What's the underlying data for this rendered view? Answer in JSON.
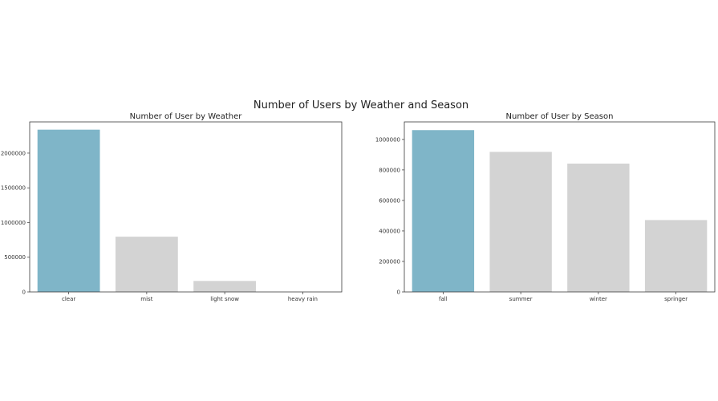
{
  "figure": {
    "suptitle": "Number of Users by Weather and Season"
  },
  "chart_data": [
    {
      "type": "bar",
      "title": "Number of User by Weather",
      "xlabel": "",
      "ylabel": "",
      "categories": [
        "clear",
        "mist",
        "light snow",
        "heavy rain"
      ],
      "values": [
        2338173,
        795952,
        158331,
        223
      ],
      "colors": [
        "#7fb5c8",
        "#d3d3d3",
        "#d3d3d3",
        "#d3d3d3"
      ],
      "ylim": [
        0,
        2450000
      ],
      "yticks": [
        0,
        500000,
        1000000,
        1500000,
        2000000
      ],
      "grid": false
    },
    {
      "type": "bar",
      "title": "Number of User by Season",
      "xlabel": "",
      "ylabel": "",
      "categories": [
        "fall",
        "summer",
        "winter",
        "springer"
      ],
      "values": [
        1061129,
        918589,
        841613,
        471348
      ],
      "colors": [
        "#7fb5c8",
        "#d3d3d3",
        "#d3d3d3",
        "#d3d3d3"
      ],
      "ylim": [
        0,
        1115000
      ],
      "yticks": [
        0,
        200000,
        400000,
        600000,
        800000,
        1000000
      ],
      "grid": false
    }
  ]
}
